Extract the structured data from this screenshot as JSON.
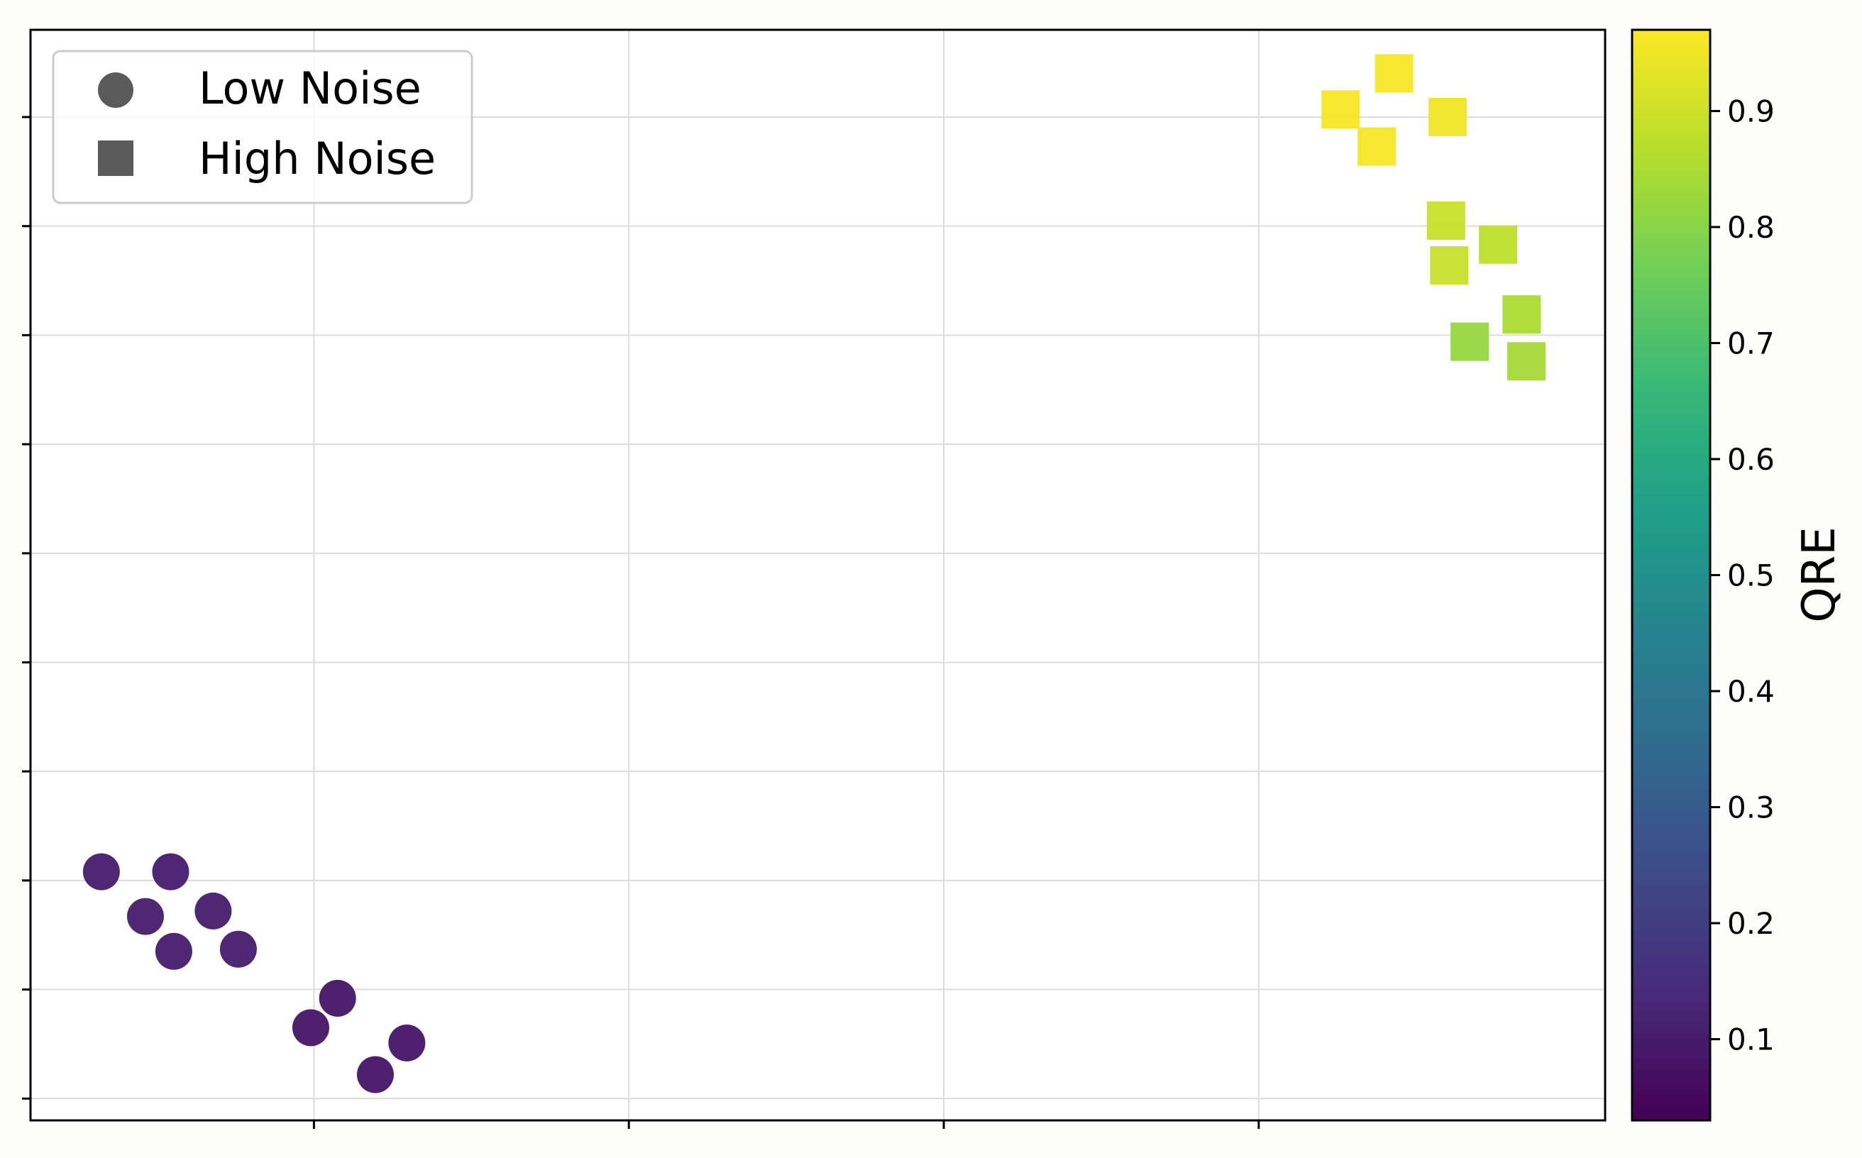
{
  "chart_data": {
    "type": "scatter",
    "title": "",
    "xlabel": "",
    "ylabel": "",
    "xlim": [
      0,
      10
    ],
    "ylim": [
      0,
      10
    ],
    "x_ticks": [
      1.8,
      3.8,
      5.8,
      7.8
    ],
    "y_ticks": [
      0.2,
      1.2,
      2.2,
      3.2,
      4.2,
      5.2,
      6.2,
      7.2,
      8.2,
      9.2
    ],
    "x_tick_labels_shown": false,
    "y_tick_labels_shown": false,
    "grid": true,
    "legend_position": "top-left",
    "series": [
      {
        "name": "Low Noise",
        "marker": "circle",
        "points": [
          {
            "x": 0.45,
            "y": 2.28,
            "qre": 0.1
          },
          {
            "x": 0.89,
            "y": 2.28,
            "qre": 0.1
          },
          {
            "x": 0.73,
            "y": 1.87,
            "qre": 0.1
          },
          {
            "x": 1.16,
            "y": 1.92,
            "qre": 0.1
          },
          {
            "x": 0.91,
            "y": 1.55,
            "qre": 0.1
          },
          {
            "x": 1.32,
            "y": 1.57,
            "qre": 0.1
          },
          {
            "x": 1.95,
            "y": 1.12,
            "qre": 0.08
          },
          {
            "x": 1.78,
            "y": 0.85,
            "qre": 0.08
          },
          {
            "x": 2.39,
            "y": 0.71,
            "qre": 0.08
          },
          {
            "x": 2.19,
            "y": 0.42,
            "qre": 0.08
          }
        ]
      },
      {
        "name": "High Noise",
        "marker": "square",
        "points": [
          {
            "x": 8.32,
            "y": 9.27,
            "qre": 0.96
          },
          {
            "x": 8.66,
            "y": 9.6,
            "qre": 0.96
          },
          {
            "x": 9.0,
            "y": 9.2,
            "qre": 0.95
          },
          {
            "x": 8.55,
            "y": 8.93,
            "qre": 0.96
          },
          {
            "x": 8.99,
            "y": 8.25,
            "qre": 0.89
          },
          {
            "x": 9.32,
            "y": 8.03,
            "qre": 0.88
          },
          {
            "x": 9.01,
            "y": 7.84,
            "qre": 0.89
          },
          {
            "x": 9.47,
            "y": 7.39,
            "qre": 0.85
          },
          {
            "x": 9.14,
            "y": 7.14,
            "qre": 0.82
          },
          {
            "x": 9.5,
            "y": 6.96,
            "qre": 0.84
          }
        ]
      }
    ],
    "colorbar": {
      "label": "QRE",
      "min": 0.03,
      "max": 0.97,
      "ticks": [
        0.1,
        0.2,
        0.3,
        0.4,
        0.5,
        0.6,
        0.7,
        0.8,
        0.9
      ],
      "colormap": "viridis",
      "colormap_stops": [
        "#440154",
        "#482878",
        "#3e4989",
        "#31688e",
        "#26828e",
        "#1f9e89",
        "#35b779",
        "#6ece58",
        "#b5de2b",
        "#fde725"
      ]
    },
    "colors": {
      "background": "#ffffff",
      "grid": "#dcdcdc",
      "axis": "#000000",
      "legend_marker": "#5a5a5a",
      "legend_border": "#cccccc"
    }
  }
}
